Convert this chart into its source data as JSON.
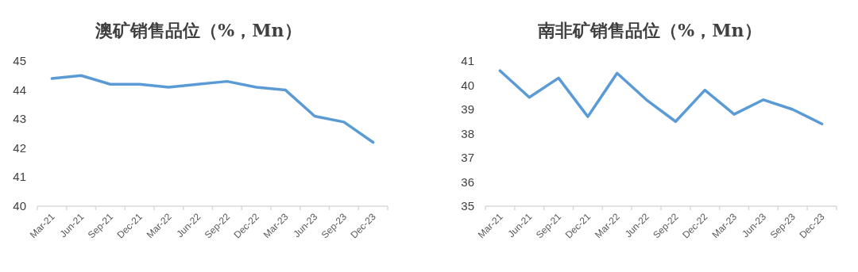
{
  "chart_data": [
    {
      "type": "line",
      "title": "澳矿销售品位（%，Mn）",
      "categories": [
        "Mar-21",
        "Jun-21",
        "Sep-21",
        "Dec-21",
        "Mar-22",
        "Jun-22",
        "Sep-22",
        "Dec-22",
        "Mar-23",
        "Jun-23",
        "Sep-23",
        "Dec-23"
      ],
      "series": [
        {
          "color": "#5b9bd5",
          "values": [
            44.4,
            44.5,
            44.2,
            44.2,
            44.1,
            44.2,
            44.3,
            44.1,
            44.0,
            43.1,
            42.9,
            42.2
          ]
        }
      ],
      "ylim": [
        40,
        45
      ],
      "yticks": [
        40,
        41,
        42,
        43,
        44,
        45
      ],
      "grid": false
    },
    {
      "type": "line",
      "title": "南非矿销售品位（%，Mn）",
      "categories": [
        "Mar-21",
        "Jun-21",
        "Sep-21",
        "Dec-21",
        "Mar-22",
        "Jun-22",
        "Sep-22",
        "Dec-22",
        "Mar-23",
        "Jun-23",
        "Sep-23",
        "Dec-23"
      ],
      "series": [
        {
          "color": "#5b9bd5",
          "values": [
            40.6,
            39.5,
            40.3,
            38.7,
            40.5,
            39.4,
            38.5,
            39.8,
            38.8,
            39.4,
            39.0,
            38.4
          ]
        }
      ],
      "ylim": [
        35,
        41
      ],
      "yticks": [
        35,
        36,
        37,
        38,
        39,
        40,
        41
      ],
      "grid": false
    }
  ]
}
